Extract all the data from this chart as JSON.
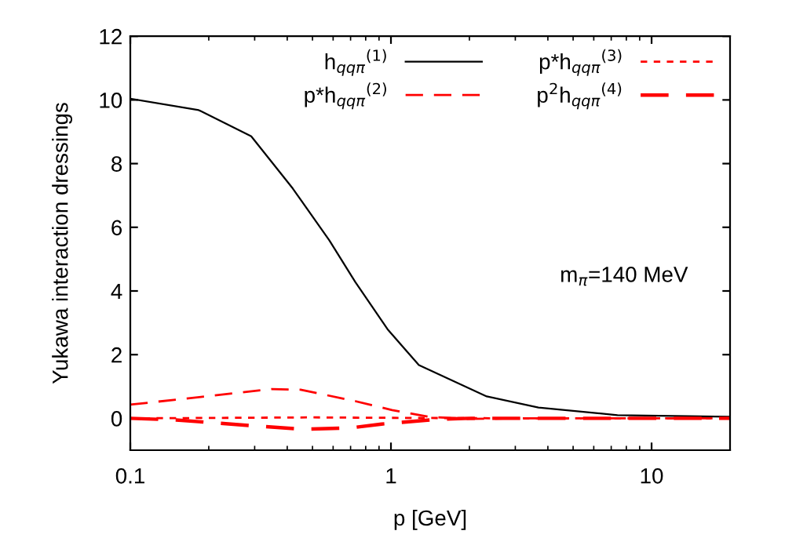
{
  "chart_data": {
    "type": "line",
    "xlabel": "p [GeV]",
    "ylabel": "Yukawa interaction dressings",
    "log": "x",
    "xlim": [
      0.1,
      20
    ],
    "xticks": [
      0.1,
      1,
      10
    ],
    "ylim": [
      -1,
      12
    ],
    "yticks": [
      0,
      2,
      4,
      6,
      8,
      10,
      12
    ],
    "grid": false,
    "legend": "top right",
    "marker": "none",
    "annotations": [
      "m$_{π}$=140 MeV"
    ],
    "series": [
      {
        "name": "h$_{qqπ}$$^{(1)}$",
        "color": "#000000",
        "line_style": "solid",
        "x": [
          0.1,
          0.183,
          0.291,
          0.42,
          0.58,
          0.73,
          0.97,
          1.28,
          2.33,
          3.68,
          7.4,
          20
        ],
        "values": [
          10.04,
          9.68,
          8.86,
          7.22,
          5.59,
          4.28,
          2.8,
          1.67,
          0.69,
          0.34,
          0.1,
          0.05
        ]
      },
      {
        "name": "p*h$_{qqπ}$$^{(2)}$",
        "color": "#ff0000",
        "line_style": "dashed",
        "x": [
          0.1,
          0.2,
          0.35,
          0.45,
          0.73,
          1.01,
          1.4,
          2,
          3,
          20
        ],
        "values": [
          0.43,
          0.7,
          0.92,
          0.9,
          0.54,
          0.26,
          0.05,
          -0.02,
          0,
          0
        ]
      },
      {
        "name": "p*h$_{qqπ}$$^{(3)}$",
        "color": "#ff0000",
        "line_style": "dotted",
        "x": [
          0.1,
          0.3,
          0.5,
          0.8,
          1.5,
          3,
          20
        ],
        "values": [
          0,
          0.02,
          0.03,
          0.02,
          0.01,
          0,
          0
        ]
      },
      {
        "name": "p$^{2}$h$_{qqπ}$$^{(4)}$",
        "color": "#ff0000",
        "line_style": "dashed",
        "x": [
          0.1,
          0.15,
          0.29,
          0.46,
          0.7,
          0.92,
          1.5,
          2,
          20
        ],
        "values": [
          0,
          -0.05,
          -0.23,
          -0.34,
          -0.3,
          -0.18,
          -0.03,
          0,
          0
        ]
      }
    ]
  }
}
